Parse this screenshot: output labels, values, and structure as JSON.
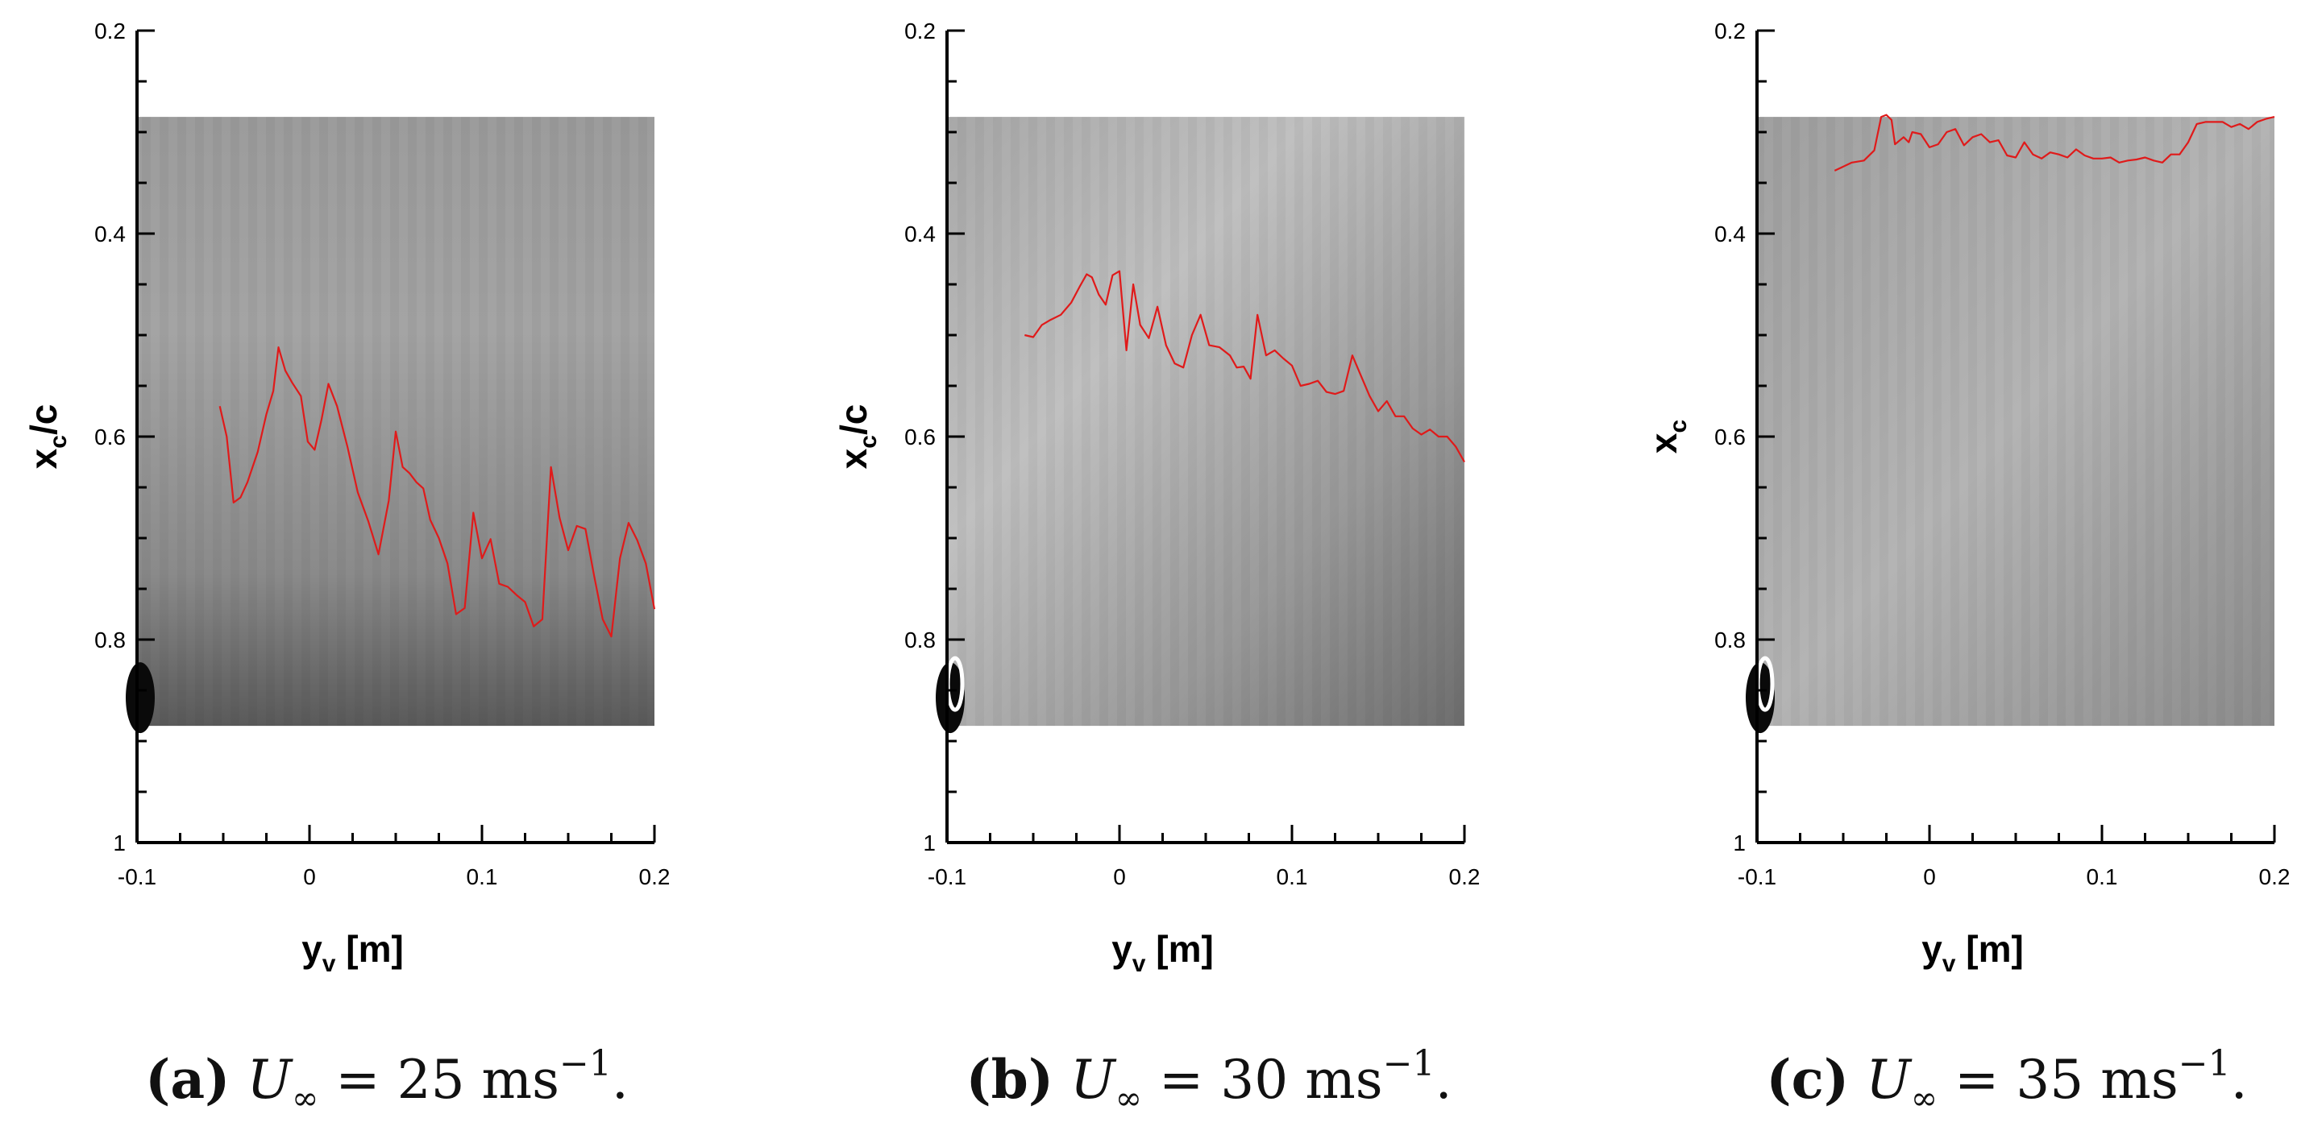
{
  "colors": {
    "interface_line": "#e01a1a",
    "axis": "#000000",
    "background": "#ffffff"
  },
  "chart_data": [
    {
      "type": "line",
      "xlabel": "y",
      "xlabel_sub": "v",
      "xlabel_unit": "[m]",
      "ylabel": "x",
      "ylabel_sub": "c",
      "ylabel_suffix": "/c",
      "xlim": [
        -0.1,
        0.2
      ],
      "ylim": [
        1.0,
        0.2
      ],
      "y_inverted": true,
      "x_ticks": [
        "-0.1",
        "0",
        "0.1",
        "0.2"
      ],
      "y_ticks": [
        "0.2",
        "0.4",
        "0.6",
        "0.8",
        "1"
      ],
      "image_extent": {
        "x": [
          -0.1,
          0.2
        ],
        "y": [
          0.285,
          0.885
        ]
      },
      "caption": {
        "label": "(a)",
        "speed": "U",
        "sub": "∞",
        "value": " = 25 ms",
        "exp": "−1",
        "end": "."
      },
      "series": [
        {
          "x": [
            -0.052,
            -0.048,
            -0.044,
            -0.04,
            -0.036,
            -0.03,
            -0.025,
            -0.021,
            -0.018,
            -0.014,
            -0.01,
            -0.005,
            -0.001,
            0.003,
            0.007,
            0.011,
            0.016,
            0.022,
            0.028,
            0.034,
            0.04,
            0.046,
            0.05,
            0.054,
            0.058,
            0.062,
            0.066,
            0.07,
            0.075,
            0.08,
            0.085,
            0.09,
            0.095,
            0.1,
            0.105,
            0.11,
            0.115,
            0.12,
            0.125,
            0.13,
            0.135,
            0.14,
            0.145,
            0.15,
            0.155,
            0.16,
            0.165,
            0.17,
            0.175,
            0.18,
            0.185,
            0.19,
            0.195,
            0.2
          ],
          "y": [
            0.57,
            0.6,
            0.665,
            0.66,
            0.645,
            0.615,
            0.578,
            0.555,
            0.512,
            0.535,
            0.547,
            0.56,
            0.605,
            0.613,
            0.583,
            0.548,
            0.57,
            0.61,
            0.655,
            0.683,
            0.716,
            0.663,
            0.595,
            0.63,
            0.636,
            0.645,
            0.651,
            0.682,
            0.7,
            0.725,
            0.775,
            0.769,
            0.675,
            0.72,
            0.701,
            0.745,
            0.748,
            0.756,
            0.763,
            0.787,
            0.78,
            0.63,
            0.68,
            0.712,
            0.688,
            0.691,
            0.737,
            0.78,
            0.797,
            0.72,
            0.685,
            0.702,
            0.725,
            0.77
          ]
        }
      ]
    },
    {
      "type": "line",
      "xlabel": "y",
      "xlabel_sub": "v",
      "xlabel_unit": "[m]",
      "ylabel": "x",
      "ylabel_sub": "c",
      "ylabel_suffix": "/c",
      "xlim": [
        -0.1,
        0.2
      ],
      "ylim": [
        1.0,
        0.2
      ],
      "y_inverted": true,
      "x_ticks": [
        "-0.1",
        "0",
        "0.1",
        "0.2"
      ],
      "y_ticks": [
        "0.2",
        "0.4",
        "0.6",
        "0.8",
        "1"
      ],
      "image_extent": {
        "x": [
          -0.1,
          0.2
        ],
        "y": [
          0.285,
          0.885
        ]
      },
      "caption": {
        "label": "(b)",
        "speed": "U",
        "sub": "∞",
        "value": " = 30 ms",
        "exp": "−1",
        "end": "."
      },
      "series": [
        {
          "x": [
            -0.055,
            -0.05,
            -0.045,
            -0.04,
            -0.034,
            -0.028,
            -0.023,
            -0.019,
            -0.016,
            -0.012,
            -0.008,
            -0.004,
            0.0,
            0.004,
            0.008,
            0.012,
            0.017,
            0.022,
            0.027,
            0.032,
            0.037,
            0.042,
            0.047,
            0.052,
            0.058,
            0.064,
            0.068,
            0.072,
            0.076,
            0.08,
            0.085,
            0.09,
            0.095,
            0.1,
            0.105,
            0.11,
            0.115,
            0.12,
            0.125,
            0.13,
            0.135,
            0.14,
            0.145,
            0.15,
            0.155,
            0.16,
            0.165,
            0.17,
            0.175,
            0.18,
            0.185,
            0.19,
            0.195,
            0.2
          ],
          "y": [
            0.5,
            0.502,
            0.49,
            0.485,
            0.48,
            0.468,
            0.452,
            0.44,
            0.443,
            0.46,
            0.47,
            0.441,
            0.437,
            0.515,
            0.45,
            0.49,
            0.503,
            0.472,
            0.51,
            0.528,
            0.532,
            0.5,
            0.48,
            0.51,
            0.512,
            0.52,
            0.532,
            0.531,
            0.543,
            0.48,
            0.52,
            0.515,
            0.523,
            0.53,
            0.55,
            0.548,
            0.545,
            0.556,
            0.558,
            0.555,
            0.52,
            0.54,
            0.56,
            0.575,
            0.565,
            0.58,
            0.58,
            0.592,
            0.598,
            0.593,
            0.6,
            0.6,
            0.61,
            0.625
          ]
        }
      ]
    },
    {
      "type": "line",
      "xlabel": "y",
      "xlabel_sub": "v",
      "xlabel_unit": "[m]",
      "ylabel": "x",
      "ylabel_sub": "c",
      "ylabel_suffix": "",
      "xlim": [
        -0.1,
        0.2
      ],
      "ylim": [
        1.0,
        0.2
      ],
      "y_inverted": true,
      "x_ticks": [
        "-0.1",
        "0",
        "0.1",
        "0.2"
      ],
      "y_ticks": [
        "0.2",
        "0.4",
        "0.6",
        "0.8",
        "1"
      ],
      "image_extent": {
        "x": [
          -0.1,
          0.2
        ],
        "y": [
          0.285,
          0.885
        ]
      },
      "caption": {
        "label": "(c)",
        "speed": "U",
        "sub": "∞",
        "value": " = 35 ms",
        "exp": "−1",
        "end": "."
      },
      "series": [
        {
          "x": [
            -0.055,
            -0.045,
            -0.038,
            -0.032,
            -0.028,
            -0.025,
            -0.022,
            -0.02,
            -0.015,
            -0.012,
            -0.01,
            -0.005,
            0.0,
            0.005,
            0.01,
            0.015,
            0.02,
            0.025,
            0.03,
            0.035,
            0.04,
            0.045,
            0.05,
            0.055,
            0.06,
            0.065,
            0.07,
            0.075,
            0.08,
            0.085,
            0.09,
            0.095,
            0.1,
            0.105,
            0.11,
            0.115,
            0.12,
            0.125,
            0.13,
            0.135,
            0.14,
            0.145,
            0.15,
            0.155,
            0.16,
            0.17,
            0.175,
            0.18,
            0.185,
            0.19,
            0.195,
            0.2
          ],
          "y": [
            0.338,
            0.33,
            0.328,
            0.318,
            0.285,
            0.283,
            0.288,
            0.312,
            0.305,
            0.31,
            0.3,
            0.302,
            0.315,
            0.312,
            0.3,
            0.297,
            0.313,
            0.305,
            0.302,
            0.31,
            0.308,
            0.323,
            0.325,
            0.31,
            0.322,
            0.326,
            0.32,
            0.322,
            0.325,
            0.317,
            0.323,
            0.326,
            0.326,
            0.325,
            0.33,
            0.328,
            0.327,
            0.325,
            0.328,
            0.33,
            0.322,
            0.322,
            0.31,
            0.292,
            0.29,
            0.29,
            0.295,
            0.292,
            0.297,
            0.29,
            0.287,
            0.285
          ]
        }
      ]
    }
  ]
}
